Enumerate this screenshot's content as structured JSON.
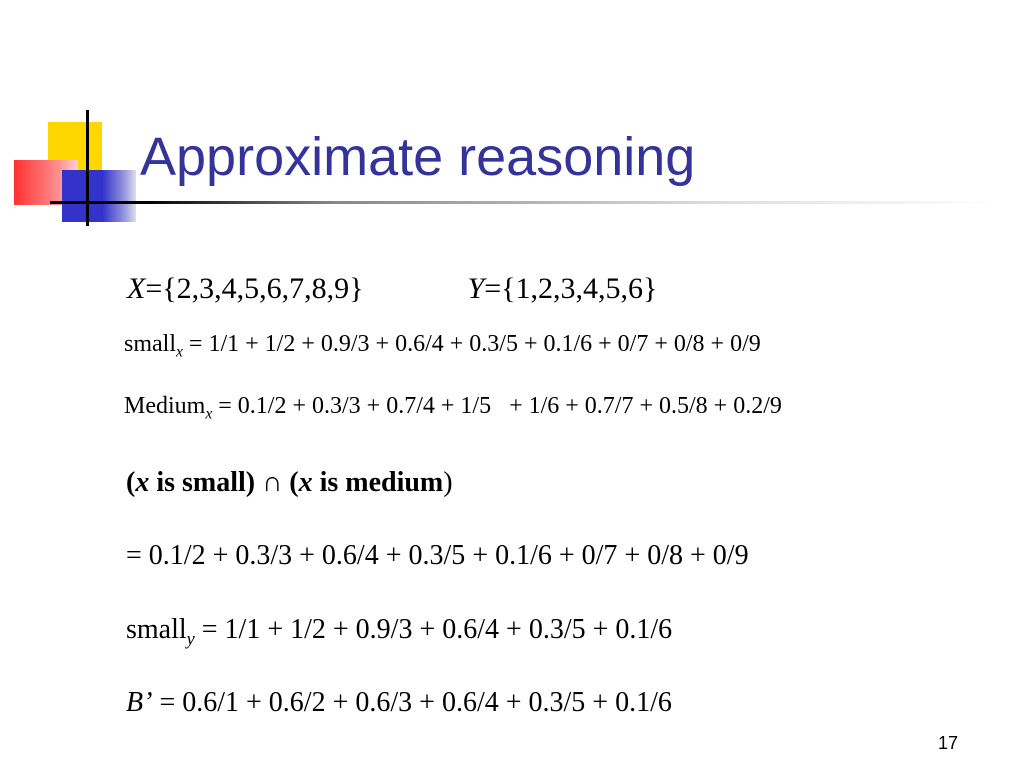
{
  "title": "Approximate reasoning",
  "lines": [
    [
      "X",
      "={2,3,4,5,6,7,8,9}",
      "Y",
      "={1,2,3,4,5,6}"
    ],
    [
      "small",
      "x",
      " = 1/1 + 1/2 + 0.9/3 + 0.6/4 + 0.3/5 + 0.1/6 + 0/7 + 0/8 + 0/9"
    ],
    [
      "Medium",
      "x",
      " = 0.1/2 + 0.3/3 + 0.7/4 + 1/5   + 1/6 + 0.7/7 + 0.5/8 + 0.2/9"
    ],
    [
      "(",
      "x",
      " is small) ∩ (",
      "x",
      " is medium",
      ")"
    ],
    [
      "= 0.1/2 + 0.3/3 + 0.6/4 + 0.3/5 + 0.1/6 + 0/7 + 0/8 + 0/9"
    ],
    [
      "small",
      "y",
      " = 1/1 + 1/2 + 0.9/3 + 0.6/4 + 0.3/5 + 0.1/6"
    ],
    [
      "B’",
      " = 0.6/1 + 0.6/2 + 0.6/3 + 0.6/4 + 0.3/5 + 0.1/6"
    ]
  ],
  "page_number": "17"
}
